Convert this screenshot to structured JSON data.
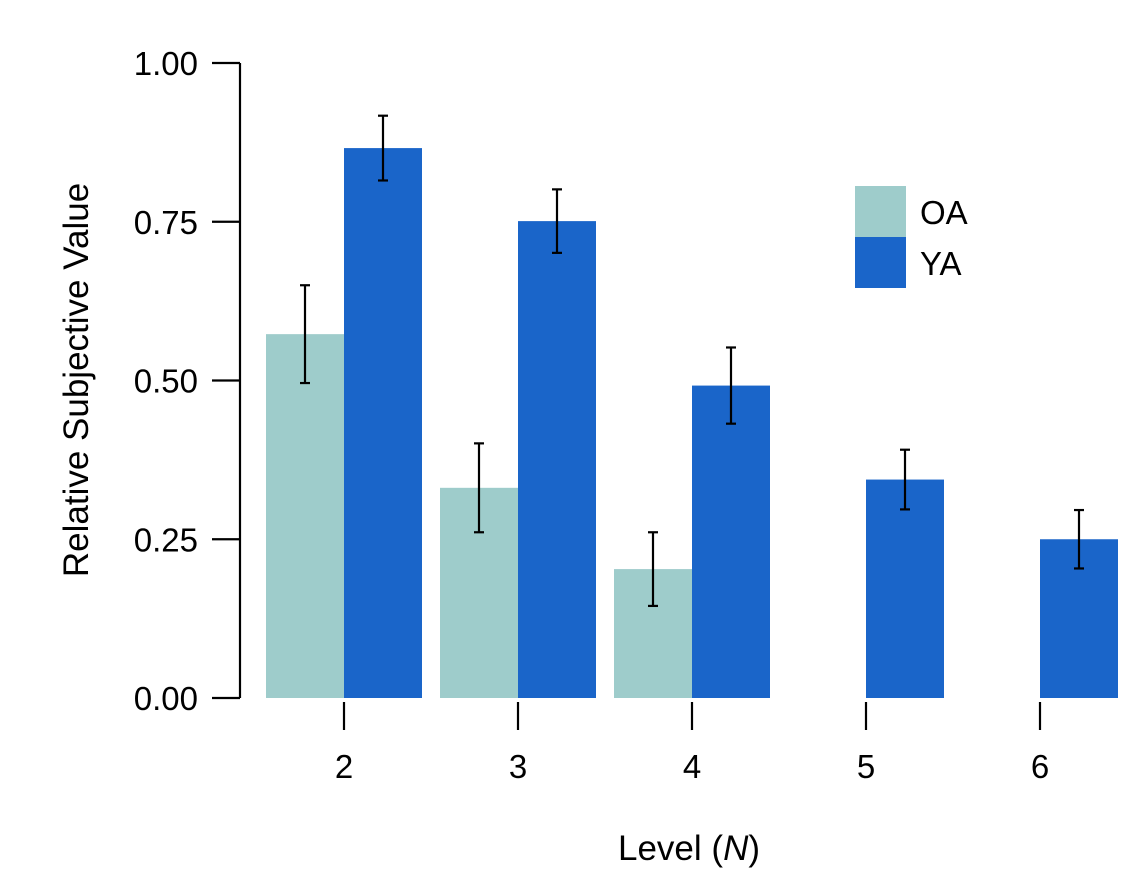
{
  "chart_data": {
    "type": "bar",
    "title": "",
    "xlabel_prefix": "Level (",
    "xlabel_var": "N",
    "xlabel_suffix": ")",
    "ylabel": "Relative Subjective Value",
    "ylim": [
      0,
      1
    ],
    "yticks": [
      "0.00",
      "0.25",
      "0.50",
      "0.75",
      "1.00"
    ],
    "categories": [
      "2",
      "3",
      "4",
      "5",
      "6"
    ],
    "legend_position": "upper-right",
    "series": [
      {
        "name": "OA",
        "color": "#9ecccb",
        "values": [
          0.573,
          0.331,
          0.203,
          null,
          null
        ],
        "error": [
          0.077,
          0.07,
          0.058,
          null,
          null
        ]
      },
      {
        "name": "YA",
        "color": "#1a65c9",
        "values": [
          0.866,
          0.751,
          0.492,
          0.344,
          0.25
        ],
        "error": [
          0.051,
          0.05,
          0.06,
          0.047,
          0.046
        ]
      }
    ]
  }
}
